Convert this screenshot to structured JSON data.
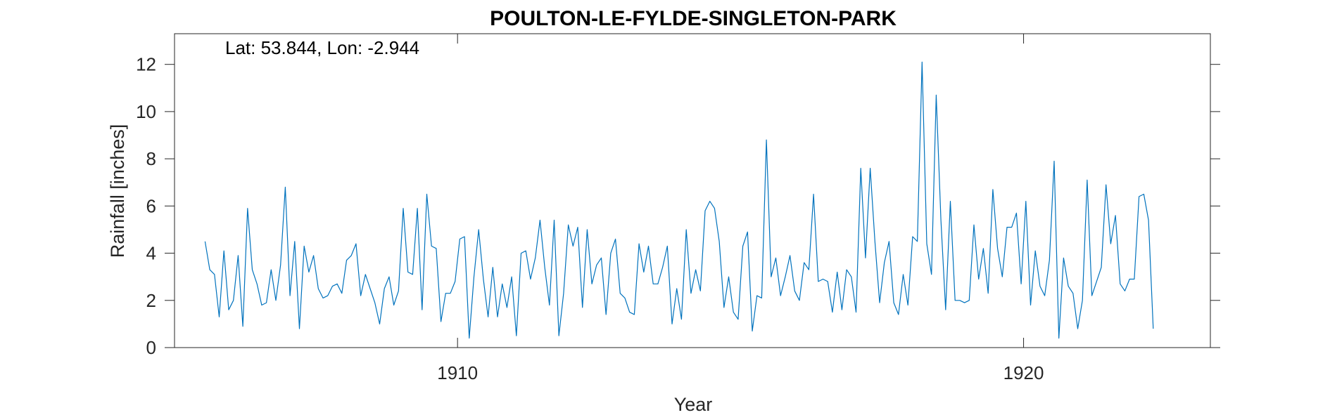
{
  "chart_data": {
    "type": "line",
    "title": "POULTON-LE-FYLDE-SINGLETON-PARK",
    "annotation": "Lat: 53.844, Lon: -2.944",
    "xlabel": "Year",
    "ylabel": "Rainfall [inches]",
    "xlim": [
      1905.0,
      1923.3
    ],
    "ylim": [
      0,
      13.3
    ],
    "x_ticks": [
      1910,
      1920
    ],
    "x_tick_labels": [
      "1910",
      "1920"
    ],
    "y_ticks": [
      0,
      2,
      4,
      6,
      8,
      10,
      12
    ],
    "y_tick_labels": [
      "0",
      "2",
      "4",
      "6",
      "8",
      "10",
      "12"
    ],
    "grid": false,
    "line_color": "#0072BD",
    "x_start": 1905.54,
    "x_step_months": 1,
    "series": [
      {
        "values": [
          4.5,
          3.3,
          3.1,
          1.3,
          4.1,
          1.6,
          2.0,
          3.9,
          0.9,
          5.9,
          3.3,
          2.7,
          1.8,
          1.9,
          3.3,
          2.0,
          3.5,
          6.8,
          2.2,
          4.5,
          0.8,
          4.3,
          3.2,
          3.9,
          2.5,
          2.1,
          2.2,
          2.6,
          2.7,
          2.3,
          3.7,
          3.9,
          4.4,
          2.2,
          3.1,
          2.5,
          1.9,
          1.0,
          2.5,
          3.0,
          1.8,
          2.4,
          5.9,
          3.2,
          3.1,
          5.9,
          1.6,
          6.5,
          4.3,
          4.2,
          1.1,
          2.3,
          2.3,
          2.8,
          4.6,
          4.7,
          0.4,
          3.0,
          5.0,
          2.9,
          1.3,
          3.4,
          1.3,
          2.7,
          1.7,
          3.0,
          0.5,
          4.0,
          4.1,
          2.9,
          3.8,
          5.4,
          3.4,
          1.8,
          5.4,
          0.5,
          2.3,
          5.2,
          4.3,
          5.1,
          1.7,
          5.0,
          2.7,
          3.5,
          3.8,
          1.4,
          4.0,
          4.6,
          2.3,
          2.1,
          1.5,
          1.4,
          4.4,
          3.2,
          4.3,
          2.7,
          2.7,
          3.4,
          4.3,
          1.0,
          2.5,
          1.2,
          5.0,
          2.3,
          3.3,
          2.4,
          5.8,
          6.2,
          5.9,
          4.5,
          1.7,
          3.0,
          1.5,
          1.2,
          4.3,
          4.9,
          0.7,
          2.2,
          2.1,
          8.8,
          3.0,
          3.8,
          2.2,
          3.0,
          3.9,
          2.4,
          2.0,
          3.6,
          3.3,
          6.5,
          2.8,
          2.9,
          2.8,
          1.5,
          3.2,
          1.6,
          3.3,
          3.0,
          1.5,
          7.6,
          3.8,
          7.6,
          4.5,
          1.9,
          3.6,
          4.5,
          1.9,
          1.4,
          3.1,
          1.8,
          4.7,
          4.5,
          12.1,
          4.4,
          3.1,
          10.7,
          5.4,
          1.6,
          6.2,
          2.0,
          2.0,
          1.9,
          2.0,
          5.2,
          2.9,
          4.2,
          2.3,
          6.7,
          4.2,
          3.0,
          5.1,
          5.1,
          5.7,
          2.7,
          6.2,
          1.8,
          4.1,
          2.6,
          2.2,
          3.7,
          7.9,
          0.4,
          3.8,
          2.6,
          2.3,
          0.8,
          2.0,
          7.1,
          2.2,
          2.8,
          3.4,
          6.9,
          4.4,
          5.6,
          2.7,
          2.4,
          2.9,
          2.9,
          6.4,
          6.5,
          5.4,
          0.8
        ]
      }
    ]
  }
}
